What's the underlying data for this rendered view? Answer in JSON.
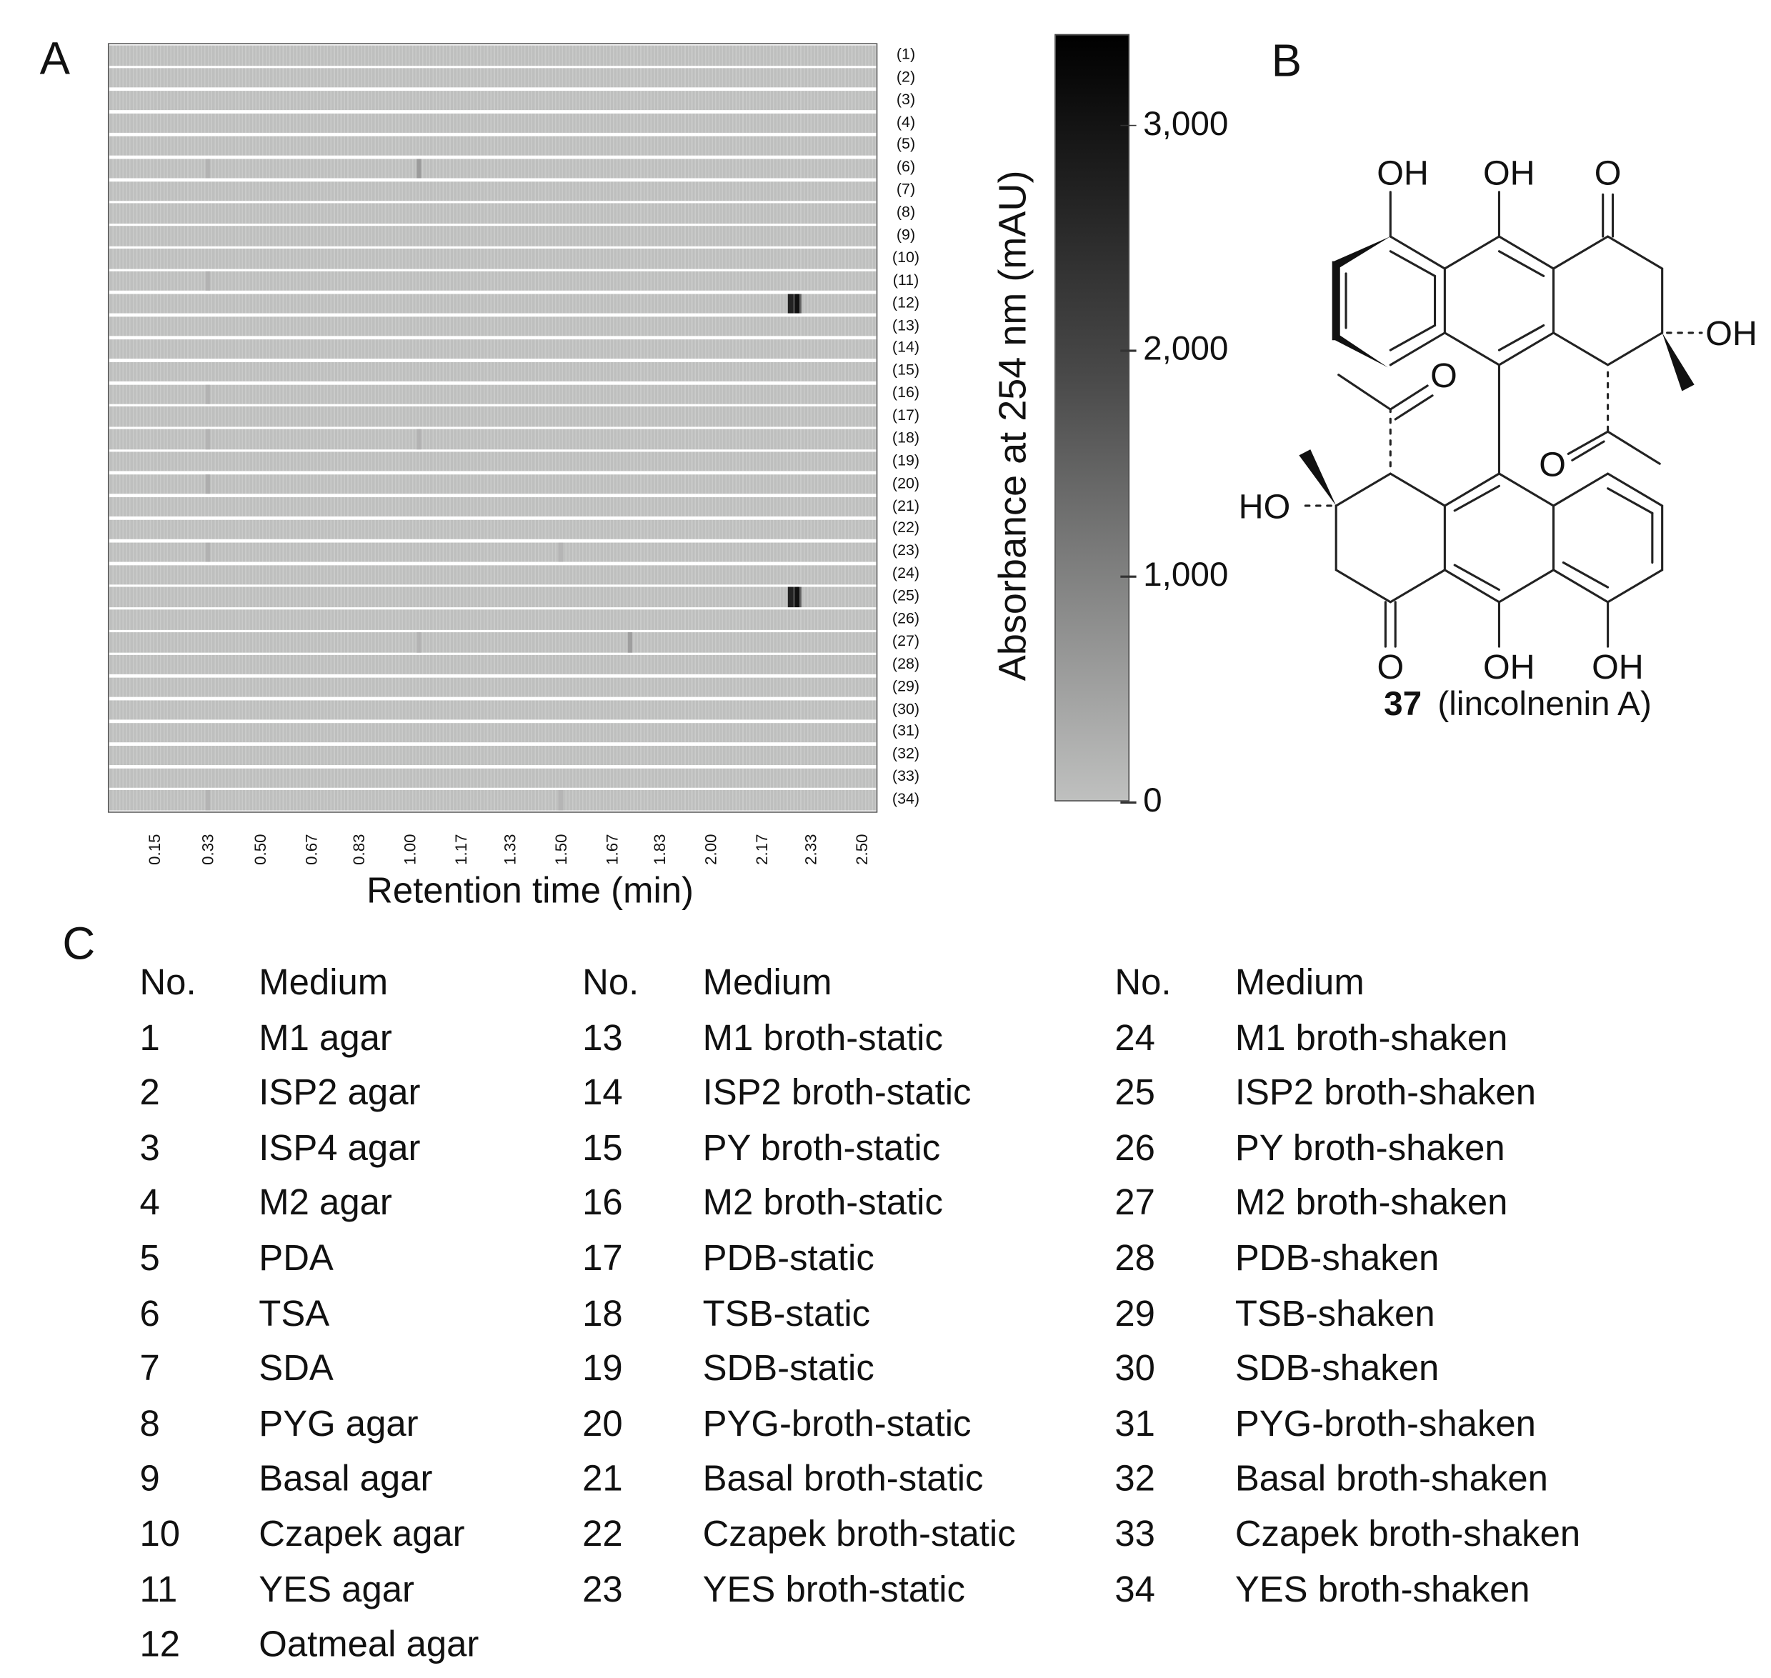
{
  "panels": {
    "a": "A",
    "b": "B",
    "c": "C"
  },
  "chart_data": {
    "type": "heatmap",
    "xlabel": "Retention time (min)",
    "colorbar_label": "Absorbance at 254 nm (mAU)",
    "x_range": [
      0,
      2.55
    ],
    "x_ticks": [
      "0.15",
      "0.33",
      "0.50",
      "0.67",
      "0.83",
      "1.00",
      "1.17",
      "1.33",
      "1.50",
      "1.67",
      "1.83",
      "2.00",
      "2.17",
      "2.33",
      "2.50"
    ],
    "x_tick_values": [
      0.15,
      0.33,
      0.5,
      0.67,
      0.83,
      1.0,
      1.17,
      1.33,
      1.5,
      1.67,
      1.83,
      2.0,
      2.17,
      2.33,
      2.5
    ],
    "rows": [
      "(1)",
      "(2)",
      "(3)",
      "(4)",
      "(5)",
      "(6)",
      "(7)",
      "(8)",
      "(9)",
      "(10)",
      "(11)",
      "(12)",
      "(13)",
      "(14)",
      "(15)",
      "(16)",
      "(17)",
      "(18)",
      "(19)",
      "(20)",
      "(21)",
      "(22)",
      "(23)",
      "(24)",
      "(25)",
      "(26)",
      "(27)",
      "(28)",
      "(29)",
      "(30)",
      "(31)",
      "(32)",
      "(33)",
      "(34)"
    ],
    "colorbar_range": [
      0,
      3400
    ],
    "colorbar_ticks": [
      "0",
      "1,000",
      "2,000",
      "3,000"
    ],
    "colorbar_tick_values": [
      0,
      1000,
      2000,
      3000
    ],
    "baseline_value": 20,
    "peaks": [
      {
        "row": 12,
        "rt": 2.28,
        "value": 3400
      },
      {
        "row": 25,
        "rt": 2.28,
        "value": 3400
      },
      {
        "row": 6,
        "rt": 1.03,
        "value": 700
      },
      {
        "row": 27,
        "rt": 1.73,
        "value": 650
      },
      {
        "row": 6,
        "rt": 0.33,
        "value": 300
      },
      {
        "row": 11,
        "rt": 0.33,
        "value": 300
      },
      {
        "row": 16,
        "rt": 0.33,
        "value": 300
      },
      {
        "row": 18,
        "rt": 0.33,
        "value": 280
      },
      {
        "row": 20,
        "rt": 0.33,
        "value": 380
      },
      {
        "row": 23,
        "rt": 0.33,
        "value": 320
      },
      {
        "row": 34,
        "rt": 0.33,
        "value": 280
      },
      {
        "row": 18,
        "rt": 1.03,
        "value": 300
      },
      {
        "row": 27,
        "rt": 1.03,
        "value": 280
      },
      {
        "row": 23,
        "rt": 1.5,
        "value": 260
      },
      {
        "row": 34,
        "rt": 1.5,
        "value": 260
      }
    ]
  },
  "structure": {
    "labels": {
      "oh1": "OH",
      "oh2": "OH",
      "o1": "O",
      "oh3": "OH",
      "o2": "O",
      "o3": "O",
      "ho": "HO",
      "o4": "O",
      "oh4": "OH",
      "oh5": "OH"
    },
    "compound_number": "37",
    "compound_name": "(lincolnenin A)"
  },
  "table": {
    "header_no": "No.",
    "header_medium": "Medium",
    "columns": [
      [
        [
          "1",
          "M1 agar"
        ],
        [
          "2",
          "ISP2 agar"
        ],
        [
          "3",
          "ISP4 agar"
        ],
        [
          "4",
          "M2 agar"
        ],
        [
          "5",
          "PDA"
        ],
        [
          "6",
          "TSA"
        ],
        [
          "7",
          "SDA"
        ],
        [
          "8",
          "PYG agar"
        ],
        [
          "9",
          "Basal agar"
        ],
        [
          "10",
          "Czapek agar"
        ],
        [
          "11",
          "YES agar"
        ],
        [
          "12",
          "Oatmeal agar"
        ]
      ],
      [
        [
          "13",
          "M1 broth-static"
        ],
        [
          "14",
          "ISP2 broth-static"
        ],
        [
          "15",
          "PY broth-static"
        ],
        [
          "16",
          "M2 broth-static"
        ],
        [
          "17",
          "PDB-static"
        ],
        [
          "18",
          "TSB-static"
        ],
        [
          "19",
          "SDB-static"
        ],
        [
          "20",
          "PYG-broth-static"
        ],
        [
          "21",
          "Basal broth-static"
        ],
        [
          "22",
          "Czapek broth-static"
        ],
        [
          "23",
          "YES broth-static"
        ]
      ],
      [
        [
          "24",
          "M1 broth-shaken"
        ],
        [
          "25",
          "ISP2 broth-shaken"
        ],
        [
          "26",
          "PY broth-shaken"
        ],
        [
          "27",
          "M2 broth-shaken"
        ],
        [
          "28",
          "PDB-shaken"
        ],
        [
          "29",
          "TSB-shaken"
        ],
        [
          "30",
          "SDB-shaken"
        ],
        [
          "31",
          "PYG-broth-shaken"
        ],
        [
          "32",
          "Basal broth-shaken"
        ],
        [
          "33",
          "Czapek broth-shaken"
        ],
        [
          "34",
          "YES broth-shaken"
        ]
      ]
    ]
  }
}
